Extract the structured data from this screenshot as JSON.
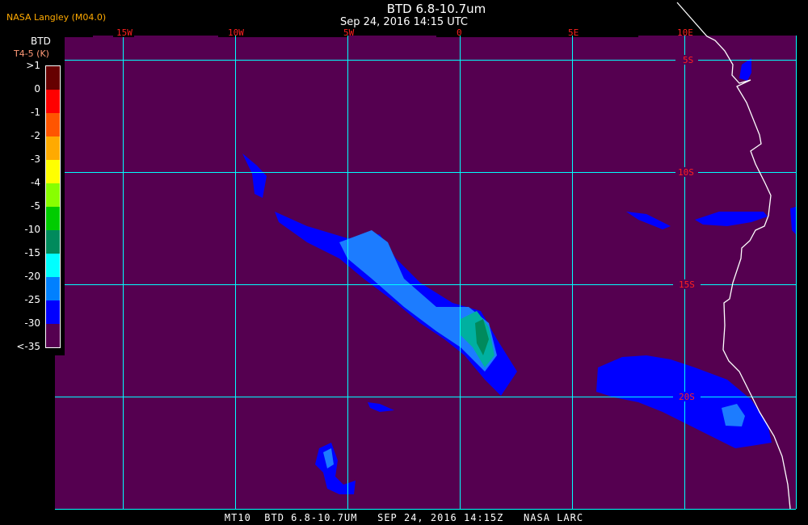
{
  "header": {
    "title": "BTD 6.8-10.7um",
    "subtitle": "Sep 24, 2016 14:15 UTC",
    "credit": "NASA Langley (M04.0)"
  },
  "footer": "MT10  BTD 6.8-10.7UM   SEP 24, 2016 14:15Z   NASA LARC",
  "legend": {
    "title": "BTD",
    "unit": "T4-5 (K)",
    "labels": [
      ">1",
      "0",
      "-1",
      "-2",
      "-3",
      "-4",
      "-5",
      "-10",
      "-15",
      "-20",
      "-25",
      "-30",
      "<-35"
    ],
    "colors": [
      "#660000",
      "#ff0000",
      "#ff5500",
      "#ffaa00",
      "#ffff00",
      "#88ff00",
      "#00cc00",
      "#008a5c",
      "#00ffff",
      "#0080ff",
      "#0000ff",
      "#550050"
    ]
  },
  "map": {
    "background_color": "#550050",
    "grid_color": "#00ffff",
    "coastline_color": "#ffffff",
    "longitude_labels": [
      "15W",
      "10W",
      "5W",
      "0",
      "5E",
      "10E"
    ],
    "latitude_labels": [
      "5S",
      "10S",
      "15S",
      "20S"
    ]
  }
}
